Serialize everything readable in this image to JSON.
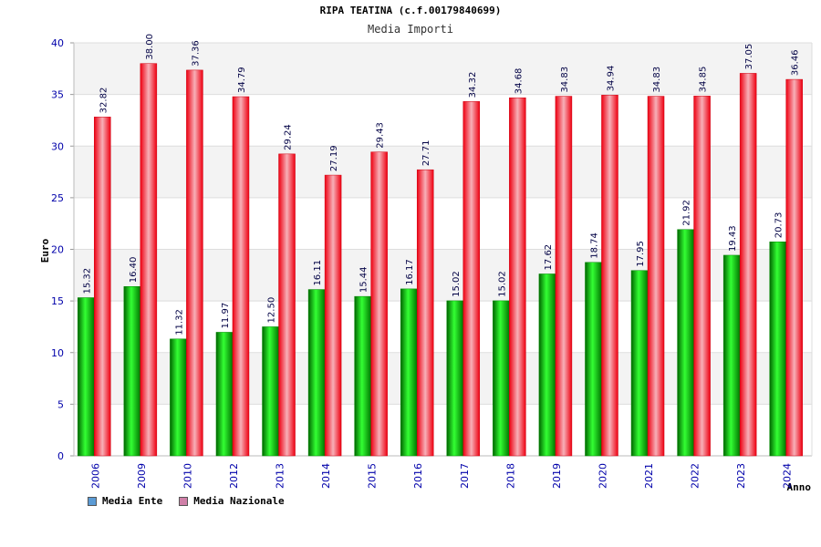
{
  "title": "RIPA TEATINA (c.f.00179840699)",
  "subtitle": "Media Importi",
  "chart_data": {
    "type": "bar",
    "ylabel": "Euro",
    "xlabel": "Anno",
    "ylim": [
      0,
      40
    ],
    "yticks": [
      0,
      5,
      10,
      15,
      20,
      25,
      30,
      35,
      40
    ],
    "categories": [
      "2006",
      "2009",
      "2010",
      "2012",
      "2013",
      "2014",
      "2015",
      "2016",
      "2017",
      "2018",
      "2019",
      "2020",
      "2021",
      "2022",
      "2023",
      "2024"
    ],
    "series": [
      {
        "name": "Media Ente",
        "color": "#00aa00",
        "legend_color": "#5b9bd5",
        "values": [
          15.32,
          16.4,
          11.32,
          11.97,
          12.5,
          16.11,
          15.44,
          16.17,
          15.02,
          15.02,
          17.62,
          18.74,
          17.95,
          21.92,
          19.43,
          20.73
        ],
        "labels": [
          "15.32",
          "16.40",
          "11.32",
          "11.97",
          "12.50",
          "16.11",
          "15.44",
          "16.17",
          "15.02",
          "15.02",
          "17.62",
          "18.74",
          "17.95",
          "21.92",
          "19.43",
          "20.73"
        ]
      },
      {
        "name": "Media Nazionale",
        "color": "#dd0011",
        "legend_color": "#d080a8",
        "values": [
          32.82,
          38.0,
          37.36,
          34.79,
          29.24,
          27.19,
          29.43,
          27.71,
          34.32,
          34.68,
          34.83,
          34.94,
          34.83,
          34.85,
          37.05,
          36.46
        ],
        "labels": [
          "32.82",
          "38.00",
          "37.36",
          "34.79",
          "29.24",
          "27.19",
          "29.43",
          "27.71",
          "34.32",
          "34.68",
          "34.83",
          "34.94",
          "34.83",
          "34.85",
          "37.05",
          "36.46"
        ]
      }
    ],
    "grid": true,
    "legend_position": "bottom-left"
  }
}
